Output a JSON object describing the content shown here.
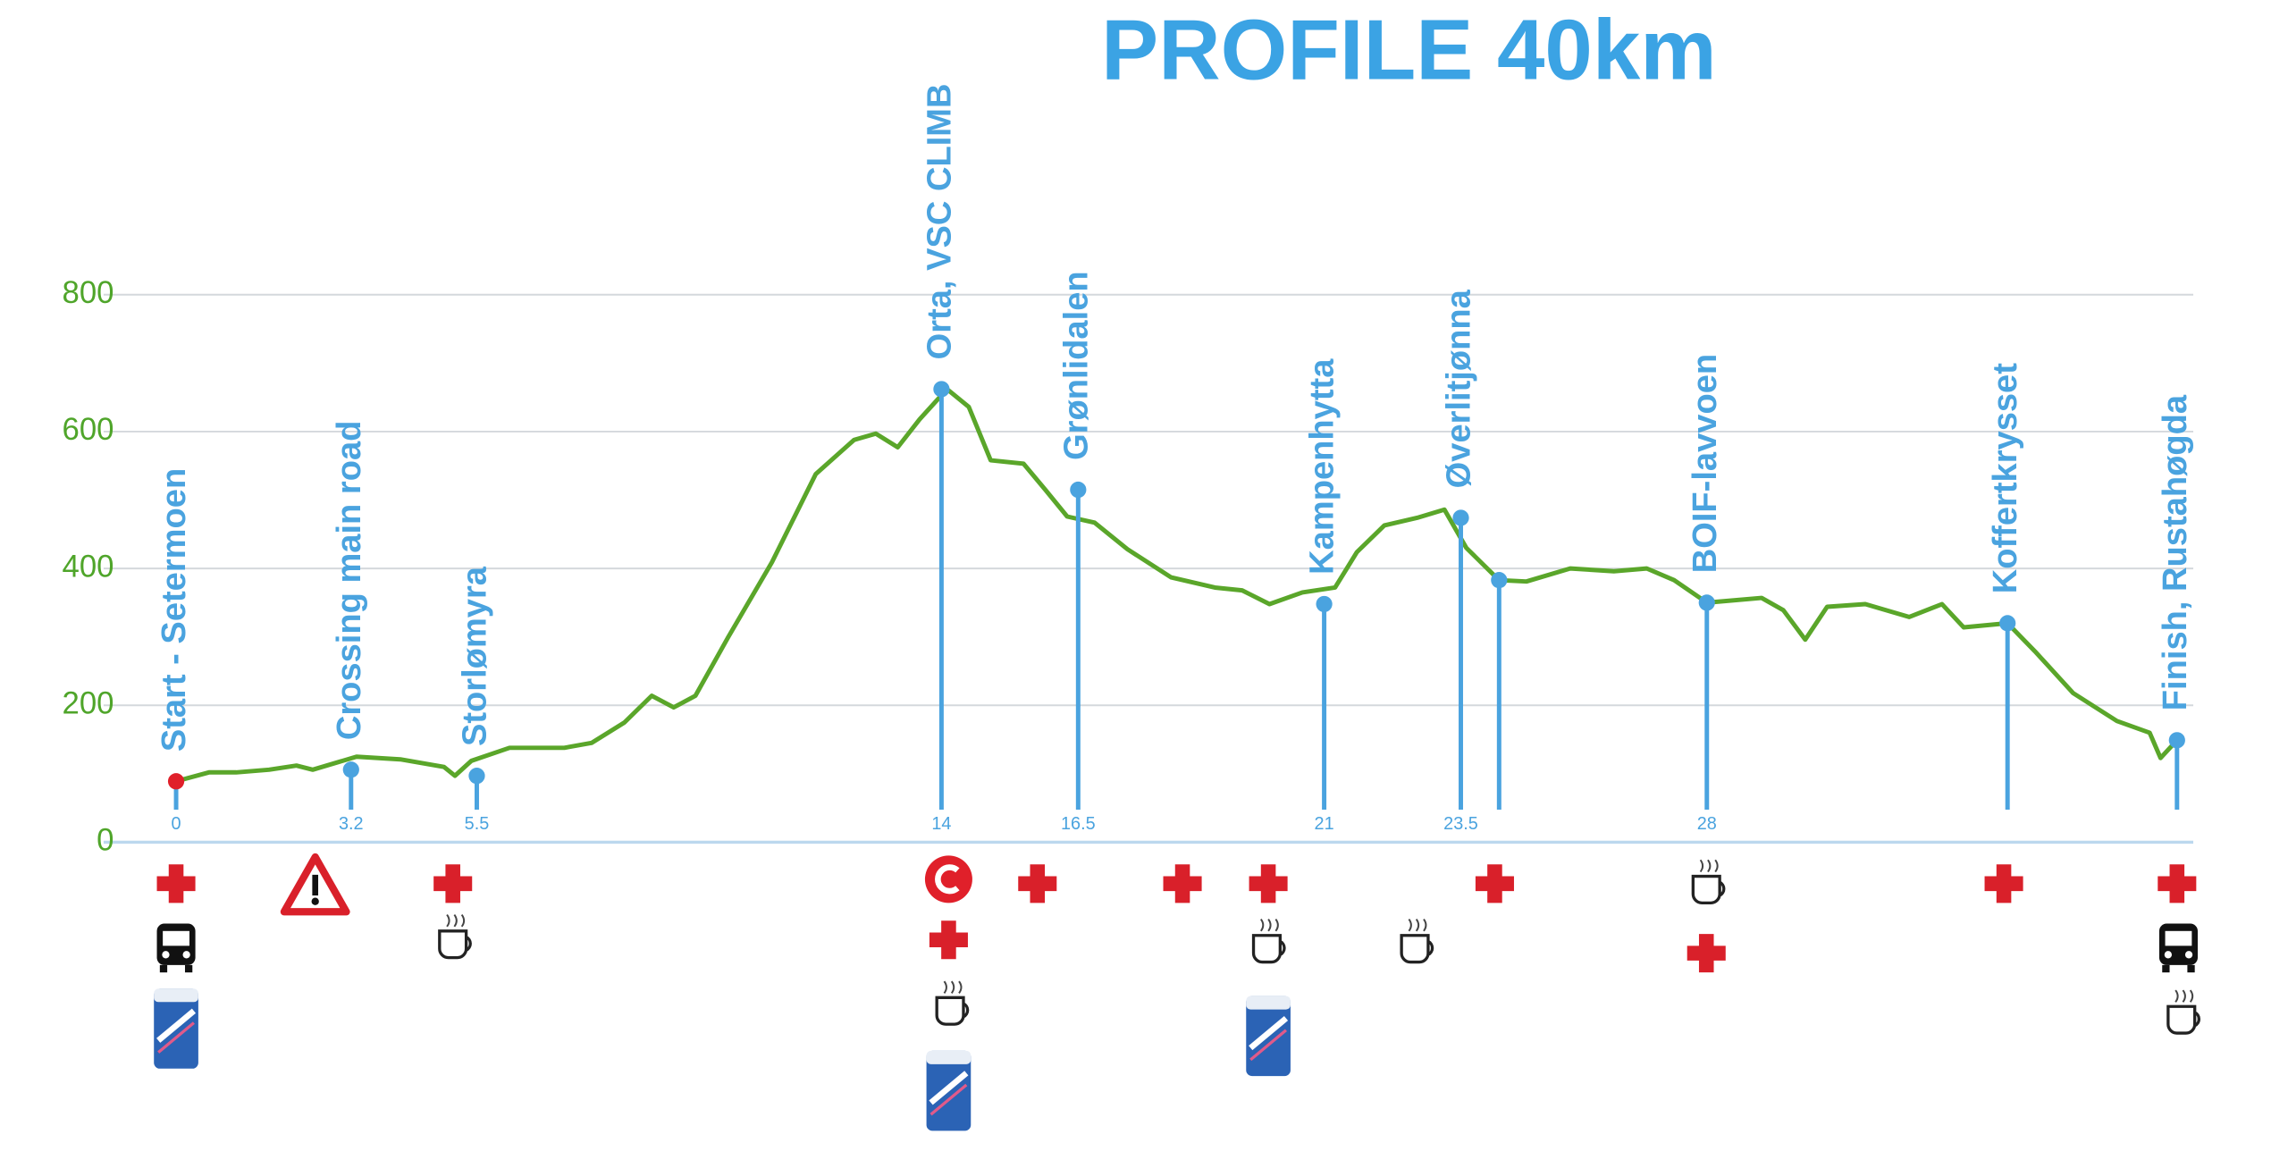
{
  "chart_data": {
    "type": "line",
    "title": "PROFILE 40km",
    "xlim": [
      0,
      36.6
    ],
    "ylim": [
      0,
      800
    ],
    "yticks": [
      0,
      200,
      400,
      600,
      800
    ],
    "grid": true,
    "series": [
      {
        "color": "#5aa62a",
        "x": [
          0,
          0.6,
          1.1,
          1.7,
          2.2,
          2.5,
          3.3,
          4.1,
          4.9,
          5.1,
          5.4,
          6.1,
          7.1,
          7.6,
          8.2,
          8.7,
          9.1,
          9.5,
          10.1,
          10.9,
          11.7,
          12.4,
          12.8,
          13.2,
          13.6,
          14.1,
          14.5,
          14.9,
          15.5,
          15.9,
          16.3,
          16.8,
          17.4,
          18.2,
          19.0,
          19.5,
          20.0,
          20.6,
          21.2,
          21.6,
          22.1,
          22.7,
          23.2,
          23.6,
          24.2,
          24.7,
          25.5,
          26.3,
          26.9,
          27.4,
          28.0,
          29.0,
          29.4,
          29.8,
          30.2,
          30.9,
          31.7,
          32.3,
          32.7,
          33.5,
          34.0,
          34.7,
          35.5,
          36.1,
          36.3,
          36.6
        ],
        "values": [
          89,
          102,
          102,
          106,
          112,
          106,
          125,
          121,
          110,
          97,
          119,
          138,
          138,
          145,
          175,
          214,
          197,
          214,
          300,
          409,
          538,
          588,
          597,
          577,
          618,
          662,
          636,
          558,
          553,
          515,
          476,
          467,
          428,
          387,
          372,
          368,
          348,
          365,
          372,
          424,
          463,
          474,
          486,
          430,
          383,
          381,
          400,
          396,
          400,
          383,
          350,
          357,
          339,
          296,
          344,
          348,
          329,
          348,
          314,
          320,
          279,
          218,
          177,
          160,
          123,
          149
        ]
      }
    ],
    "waypoints": [
      {
        "name": "Start - Setermoen",
        "km": 0,
        "elevation": 89,
        "color": "#e0202a"
      },
      {
        "name": "Crossing main road",
        "km": 3.2,
        "elevation": 106,
        "color": "#4aa3df"
      },
      {
        "name": "Storlømyra",
        "km": 5.5,
        "elevation": 97,
        "color": "#4aa3df"
      },
      {
        "name": "Orta, VSC CLIMB",
        "km": 14,
        "elevation": 662,
        "color": "#4aa3df"
      },
      {
        "name": "Grønlidalen",
        "km": 16.5,
        "elevation": 515,
        "color": "#4aa3df"
      },
      {
        "name": "Kampenhytta",
        "km": 21,
        "elevation": 348,
        "color": "#4aa3df"
      },
      {
        "name": "Øverlitjønna",
        "km": 23.5,
        "elevation": 474,
        "color": "#4aa3df"
      },
      {
        "name": null,
        "x": 24.2,
        "elevation": 383,
        "color": "#4aa3df"
      },
      {
        "name": "BOIF-lavvoen",
        "km": 28,
        "elevation": 350,
        "color": "#4aa3df"
      },
      {
        "name": "Koffertkrysset",
        "x": 33.5,
        "elevation": 320,
        "color": "#4aa3df"
      },
      {
        "name": "Finish, Rustahøgda",
        "x": 36.6,
        "elevation": 149,
        "color": "#4aa3df"
      }
    ]
  }
}
